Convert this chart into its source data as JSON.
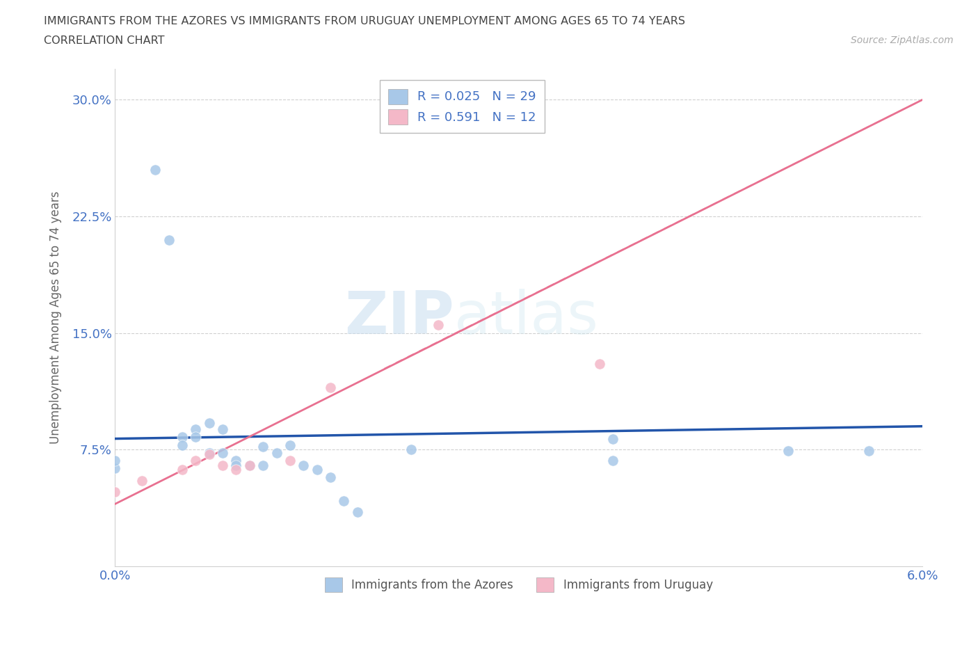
{
  "title_line1": "IMMIGRANTS FROM THE AZORES VS IMMIGRANTS FROM URUGUAY UNEMPLOYMENT AMONG AGES 65 TO 74 YEARS",
  "title_line2": "CORRELATION CHART",
  "source_text": "Source: ZipAtlas.com",
  "xlabel": "",
  "ylabel": "Unemployment Among Ages 65 to 74 years",
  "xmin": 0.0,
  "xmax": 0.06,
  "ymin": 0.0,
  "ymax": 0.32,
  "yticks": [
    0.0,
    0.075,
    0.15,
    0.225,
    0.3
  ],
  "ytick_labels": [
    "",
    "7.5%",
    "15.0%",
    "22.5%",
    "30.0%"
  ],
  "xticks": [
    0.0,
    0.01,
    0.02,
    0.03,
    0.04,
    0.05,
    0.06
  ],
  "xtick_labels": [
    "0.0%",
    "",
    "",
    "",
    "",
    "",
    "6.0%"
  ],
  "azores_color": "#a8c8e8",
  "uruguay_color": "#f4b8c8",
  "azores_R": "0.025",
  "azores_N": "29",
  "uruguay_R": "0.591",
  "uruguay_N": "12",
  "legend_label_azores": "Immigrants from the Azores",
  "legend_label_uruguay": "Immigrants from Uruguay",
  "watermark_zip": "ZIP",
  "watermark_atlas": "atlas",
  "azores_x": [
    0.0,
    0.0,
    0.003,
    0.004,
    0.005,
    0.005,
    0.006,
    0.006,
    0.007,
    0.007,
    0.008,
    0.008,
    0.009,
    0.009,
    0.01,
    0.011,
    0.011,
    0.012,
    0.013,
    0.014,
    0.015,
    0.016,
    0.017,
    0.018,
    0.022,
    0.037,
    0.037,
    0.05,
    0.056
  ],
  "azores_y": [
    0.063,
    0.068,
    0.255,
    0.21,
    0.083,
    0.078,
    0.088,
    0.083,
    0.092,
    0.073,
    0.088,
    0.073,
    0.068,
    0.065,
    0.065,
    0.077,
    0.065,
    0.073,
    0.078,
    0.065,
    0.062,
    0.057,
    0.042,
    0.035,
    0.075,
    0.082,
    0.068,
    0.074,
    0.074
  ],
  "uruguay_x": [
    0.0,
    0.002,
    0.005,
    0.006,
    0.007,
    0.008,
    0.009,
    0.01,
    0.013,
    0.016,
    0.024,
    0.036
  ],
  "uruguay_y": [
    0.048,
    0.055,
    0.062,
    0.068,
    0.072,
    0.065,
    0.062,
    0.065,
    0.068,
    0.115,
    0.155,
    0.13
  ],
  "azores_trend_x": [
    0.0,
    0.06
  ],
  "azores_trend_y": [
    0.082,
    0.09
  ],
  "uruguay_trend_x": [
    0.0,
    0.06
  ],
  "uruguay_trend_y": [
    0.04,
    0.3
  ],
  "grid_color": "#d0d0d0",
  "grid_linestyle": "--",
  "background_color": "#ffffff",
  "trend_azores_color": "#2255aa",
  "trend_uruguay_color": "#e87090"
}
